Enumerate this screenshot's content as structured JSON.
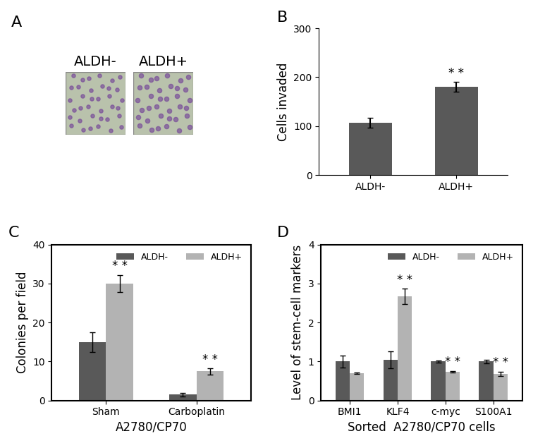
{
  "chart_data": [
    {
      "type": "image",
      "title": "A",
      "categories": [
        "ALDH-",
        "ALDH+"
      ]
    },
    {
      "type": "bar",
      "title": "B",
      "categories": [
        "ALDH-",
        "ALDH+"
      ],
      "values": [
        107,
        180
      ],
      "errors": [
        10,
        10
      ],
      "significance": [
        null,
        "* *"
      ],
      "color": "#595959",
      "ylabel": "Cells invaded",
      "ylim": [
        0,
        300
      ],
      "yticks": [
        0,
        100,
        200,
        300
      ],
      "grid": false
    },
    {
      "type": "bar",
      "title": "C",
      "categories": [
        "Sham",
        "Carboplatin"
      ],
      "xlabel": "A2780/CP70",
      "ylabel": "Colonies per field",
      "series": [
        {
          "name": "ALDH-",
          "color": "#595959",
          "values": [
            15,
            1.5
          ],
          "errors": [
            2.5,
            0.5
          ],
          "significance": [
            null,
            null
          ]
        },
        {
          "name": "ALDH+",
          "color": "#b3b3b3",
          "values": [
            30,
            7.5
          ],
          "errors": [
            2.2,
            0.8
          ],
          "significance": [
            "* *",
            "* *"
          ]
        }
      ],
      "ylim": [
        0,
        40
      ],
      "yticks": [
        0,
        10,
        20,
        30,
        40
      ],
      "legend": "upper right",
      "grid": false
    },
    {
      "type": "bar",
      "title": "D",
      "categories": [
        "BMI1",
        "KLF4",
        "c-myc",
        "S100A1"
      ],
      "xlabel": "Sorted  A2780/CP70 cells",
      "ylabel": "Level of stem-cell markers",
      "series": [
        {
          "name": "ALDH-",
          "color": "#595959",
          "values": [
            1.0,
            1.05,
            1.0,
            1.0
          ],
          "errors": [
            0.15,
            0.22,
            0.02,
            0.04
          ],
          "significance": [
            null,
            null,
            null,
            null
          ]
        },
        {
          "name": "ALDH+",
          "color": "#b3b3b3",
          "values": [
            0.7,
            2.67,
            0.74,
            0.68
          ],
          "errors": [
            0.02,
            0.2,
            0.02,
            0.06
          ],
          "significance": [
            null,
            "* *",
            "* *",
            "* *"
          ]
        }
      ],
      "ylim": [
        0,
        4
      ],
      "yticks": [
        0,
        1,
        2,
        3,
        4
      ],
      "legend": "upper right",
      "grid": false
    }
  ]
}
